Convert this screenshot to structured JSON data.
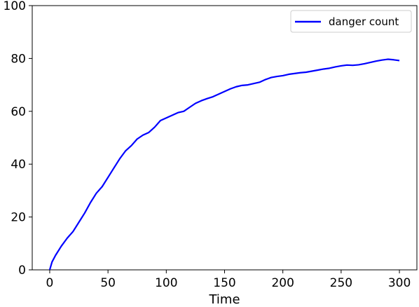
{
  "chart_data": {
    "type": "line",
    "title": "",
    "xlabel": "Time",
    "ylabel": "",
    "xlim": [
      -15,
      315
    ],
    "ylim": [
      0,
      100
    ],
    "xticks": [
      0,
      50,
      100,
      150,
      200,
      250,
      300
    ],
    "yticks": [
      0,
      20,
      40,
      60,
      80,
      100
    ],
    "grid": false,
    "legend_position": "top-right",
    "series": [
      {
        "name": "danger count",
        "color": "#0000ff",
        "x": [
          0,
          2,
          5,
          10,
          15,
          20,
          25,
          30,
          35,
          40,
          45,
          50,
          55,
          60,
          65,
          70,
          75,
          80,
          85,
          90,
          95,
          100,
          105,
          110,
          115,
          120,
          125,
          130,
          135,
          140,
          145,
          150,
          155,
          160,
          165,
          170,
          175,
          180,
          185,
          190,
          195,
          200,
          205,
          210,
          215,
          220,
          225,
          230,
          235,
          240,
          245,
          250,
          255,
          260,
          265,
          270,
          275,
          280,
          285,
          290,
          295,
          300
        ],
        "y": [
          0,
          3,
          5.5,
          9,
          12,
          14.5,
          18,
          21.5,
          25.5,
          29,
          31.5,
          35,
          38.5,
          42,
          45,
          47,
          49.5,
          51,
          52,
          54,
          56.5,
          57.5,
          58.5,
          59.5,
          60,
          61.5,
          63,
          64,
          64.8,
          65.5,
          66.5,
          67.5,
          68.5,
          69.3,
          69.8,
          70,
          70.5,
          71,
          72,
          72.8,
          73.2,
          73.5,
          74,
          74.3,
          74.6,
          74.8,
          75.2,
          75.6,
          76,
          76.3,
          76.8,
          77.2,
          77.5,
          77.4,
          77.6,
          78,
          78.5,
          79,
          79.4,
          79.7,
          79.5,
          79.2
        ]
      }
    ]
  }
}
